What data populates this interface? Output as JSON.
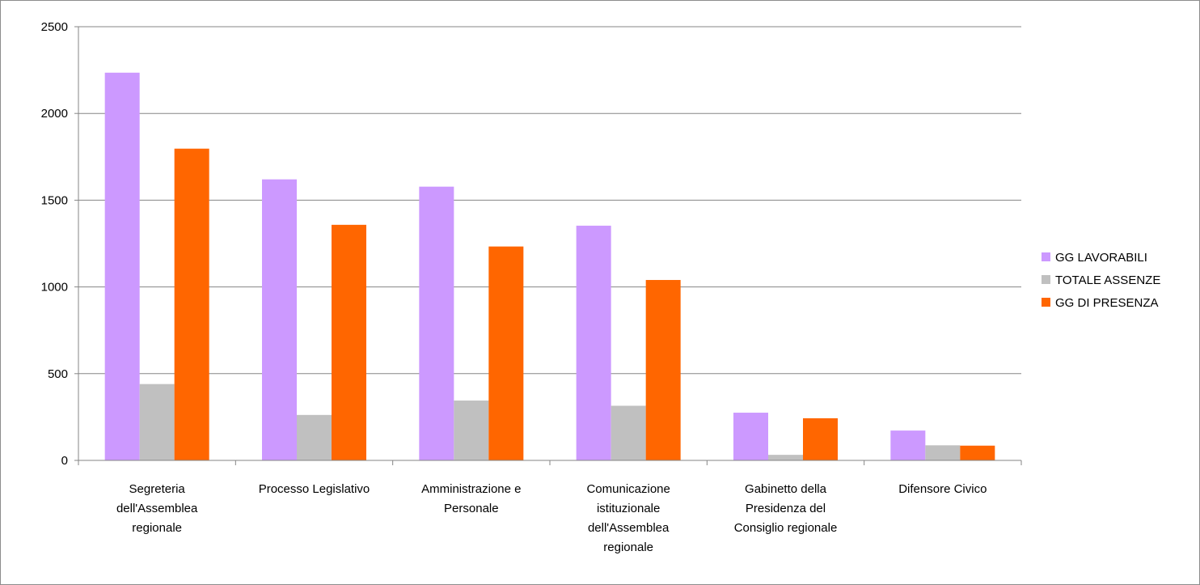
{
  "chart_data": {
    "type": "bar",
    "title": "",
    "xlabel": "",
    "ylabel": "",
    "ylim": [
      0,
      2500
    ],
    "yticks": [
      0,
      500,
      1000,
      1500,
      2000,
      2500
    ],
    "grid": true,
    "legend_position": "right",
    "categories": [
      [
        "Segreteria",
        "dell'Assemblea",
        "regionale"
      ],
      [
        "Processo Legislativo"
      ],
      [
        "Amministrazione e",
        "Personale"
      ],
      [
        "Comunicazione",
        "istituzionale",
        "dell'Assemblea",
        "regionale"
      ],
      [
        "Gabinetto della",
        "Presidenza del",
        "Consiglio regionale"
      ],
      [
        "Difensore Civico"
      ]
    ],
    "series": [
      {
        "name": "GG LAVORABILI",
        "color": "#cc99ff",
        "values": [
          2235,
          1620,
          1578,
          1353,
          275,
          172
        ]
      },
      {
        "name": "TOTALE ASSENZE",
        "color": "#c0c0c0",
        "values": [
          440,
          262,
          345,
          315,
          32,
          87
        ]
      },
      {
        "name": "GG DI PRESENZA",
        "color": "#ff6600",
        "values": [
          1797,
          1358,
          1233,
          1040,
          243,
          85
        ]
      }
    ]
  }
}
